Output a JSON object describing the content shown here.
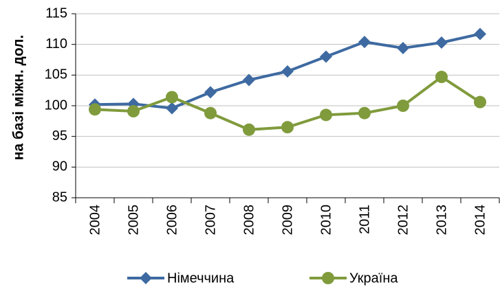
{
  "chart_data": {
    "type": "line",
    "y_label": "на базі міжн. дол.",
    "categories": [
      "2004",
      "2005",
      "2006",
      "2007",
      "2008",
      "2009",
      "2010",
      "2011",
      "2012",
      "2013",
      "2014"
    ],
    "series": [
      {
        "name": "Німеччина",
        "color": "#3e6aa1",
        "marker": "diamond",
        "values": [
          100.2,
          100.3,
          99.6,
          102.2,
          104.2,
          105.6,
          108.0,
          110.4,
          109.4,
          110.3,
          111.7
        ]
      },
      {
        "name": "Україна",
        "color": "#809b3c",
        "marker": "circle",
        "values": [
          99.4,
          99.1,
          101.4,
          98.8,
          96.1,
          96.5,
          98.5,
          98.8,
          100.0,
          104.7,
          100.6
        ]
      }
    ],
    "ylim": [
      85,
      115
    ],
    "yticks": [
      85,
      90,
      95,
      100,
      105,
      110,
      115
    ],
    "grid": true,
    "legend": "bottom"
  }
}
